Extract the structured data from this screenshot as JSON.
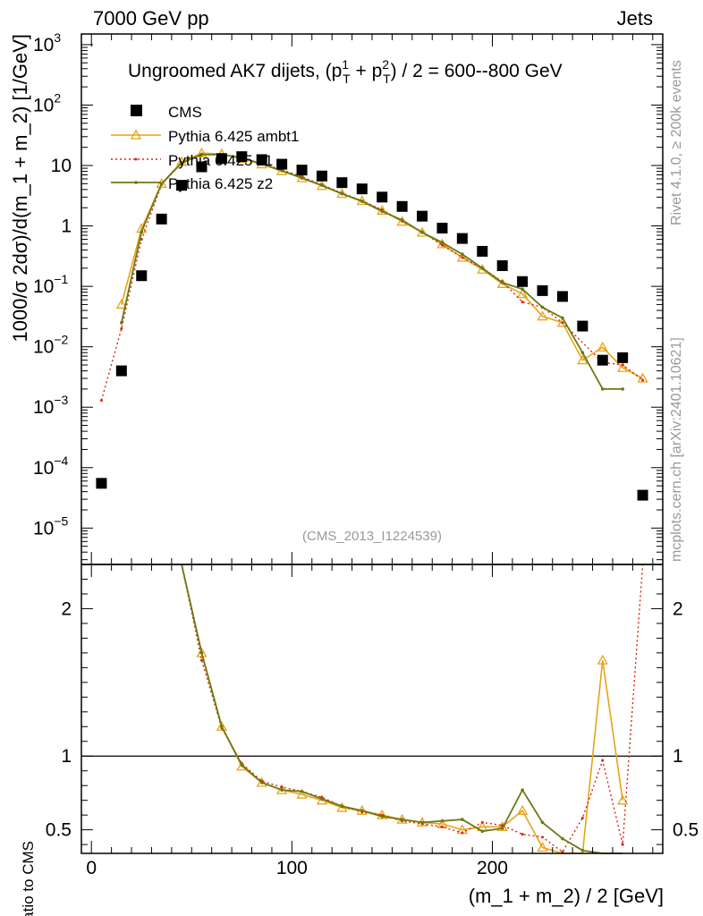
{
  "header": {
    "left": "7000 GeV pp",
    "right": "Jets"
  },
  "side": {
    "rivet": "Rivet 4.1.0, ≥ 200k events",
    "mcplots": "mcplots.cern.ch [arXiv:2401.10621]"
  },
  "plot_title": {
    "main": "Ungroomed AK7 dijets, (p",
    "s1": "1",
    "t1": "T",
    "mid": " + p",
    "s2": "2",
    "t2": "T",
    "end": ") / 2 = 600--800 GeV"
  },
  "analysis_id": "(CMS_2013_I1224539)",
  "ylabel": "1000/σ   2dσ)/d(m_1 + m_2) [1/GeV]",
  "ratio_ylabel": "Ratio to CMS",
  "xlabel": "(m_1 + m_2) / 2 [GeV]",
  "colors": {
    "cms": "#000000",
    "ambt1": "#e8a317",
    "z1": "#dd2211",
    "z2": "#6b7a12"
  },
  "chart_data": {
    "type": "scatter",
    "xlim": [
      -5,
      285
    ],
    "main_ylim": [
      2.5e-06,
      1500
    ],
    "ratio_ylim": [
      0.34,
      2.3
    ],
    "main_y_ticks": [
      {
        "v": 1e-05,
        "b": "10",
        "e": "−5"
      },
      {
        "v": 0.0001,
        "b": "10",
        "e": "−4"
      },
      {
        "v": 0.001,
        "b": "10",
        "e": "−3"
      },
      {
        "v": 0.01,
        "b": "10",
        "e": "−2"
      },
      {
        "v": 0.1,
        "b": "10",
        "e": "−1"
      },
      {
        "v": 1,
        "b": "1",
        "e": ""
      },
      {
        "v": 10,
        "b": "10",
        "e": ""
      },
      {
        "v": 100,
        "b": "10",
        "e": "2"
      },
      {
        "v": 1000,
        "b": "10",
        "e": "3"
      }
    ],
    "ratio_y_ticks": [
      {
        "v": 0.5,
        "label": "0.5"
      },
      {
        "v": 1,
        "label": "1"
      },
      {
        "v": 2,
        "label": "2"
      }
    ],
    "x_ticks": [
      {
        "v": 0,
        "label": "0"
      },
      {
        "v": 100,
        "label": "100"
      },
      {
        "v": 200,
        "label": "200"
      }
    ],
    "x": [
      5,
      15,
      25,
      35,
      45,
      55,
      65,
      75,
      85,
      95,
      105,
      115,
      125,
      135,
      145,
      155,
      165,
      175,
      185,
      195,
      205,
      215,
      225,
      235,
      245,
      255,
      265,
      275
    ],
    "series": [
      {
        "name": "CMS",
        "key": "cms",
        "values": [
          5.5e-05,
          0.004,
          0.15,
          1.3,
          4.7,
          9.5,
          13.0,
          14.0,
          12.5,
          10.5,
          8.4,
          6.7,
          5.2,
          4.1,
          3.0,
          2.1,
          1.45,
          0.92,
          0.62,
          0.38,
          0.22,
          0.12,
          0.085,
          0.068,
          0.022,
          0.006,
          0.0066,
          3.5e-05
        ]
      },
      {
        "name": "Pythia 6.425 ambt1",
        "key": "ambt1",
        "values": [
          null,
          0.05,
          0.9,
          5.0,
          11.5,
          16.0,
          15.5,
          13.0,
          10.5,
          8.1,
          6.2,
          4.6,
          3.4,
          2.6,
          1.8,
          1.18,
          0.78,
          0.5,
          0.3,
          0.19,
          0.11,
          0.075,
          0.032,
          0.025,
          0.006,
          0.0098,
          0.0045,
          0.003
        ],
        "ratio": [
          null,
          null,
          null,
          null,
          2.4,
          1.7,
          1.2,
          0.93,
          0.82,
          0.77,
          0.74,
          0.7,
          0.65,
          0.63,
          0.6,
          0.57,
          0.55,
          0.54,
          0.5,
          0.52,
          0.52,
          0.63,
          0.38,
          0.3,
          0.27,
          1.65,
          0.7,
          null
        ]
      },
      {
        "name": "Pythia 6.425 z1",
        "key": "z1",
        "values": [
          0.0013,
          0.02,
          0.6,
          4.8,
          11.0,
          15.0,
          15.0,
          13.3,
          10.8,
          8.5,
          6.5,
          4.8,
          3.5,
          2.6,
          1.85,
          1.2,
          0.8,
          0.48,
          0.3,
          0.2,
          0.12,
          0.055,
          0.045,
          0.025,
          null,
          0.0055,
          0.005,
          0.0028
        ],
        "ratio": [
          null,
          null,
          null,
          null,
          2.3,
          1.65,
          1.19,
          0.95,
          0.83,
          0.79,
          0.76,
          0.72,
          0.66,
          0.62,
          0.6,
          0.56,
          0.54,
          0.52,
          0.48,
          0.55,
          0.53,
          0.47,
          0.45,
          0.35,
          0.58,
          0.97,
          0.4,
          2.3
        ]
      },
      {
        "name": "Pythia 6.425 z2",
        "key": "z2",
        "values": [
          null,
          0.025,
          0.8,
          5.0,
          11.0,
          15.2,
          15.2,
          13.4,
          10.6,
          8.2,
          6.2,
          4.7,
          3.4,
          2.55,
          1.75,
          1.25,
          0.78,
          0.53,
          0.34,
          0.2,
          0.115,
          0.09,
          0.045,
          0.03,
          0.008,
          0.002,
          0.002,
          null
        ],
        "ratio": [
          null,
          null,
          null,
          null,
          2.4,
          1.7,
          1.2,
          0.94,
          0.82,
          0.77,
          0.76,
          0.71,
          0.66,
          0.63,
          0.59,
          0.57,
          0.55,
          0.56,
          0.57,
          0.49,
          0.51,
          0.77,
          0.55,
          0.44,
          0.36,
          0.33,
          0.31,
          null
        ]
      }
    ]
  }
}
